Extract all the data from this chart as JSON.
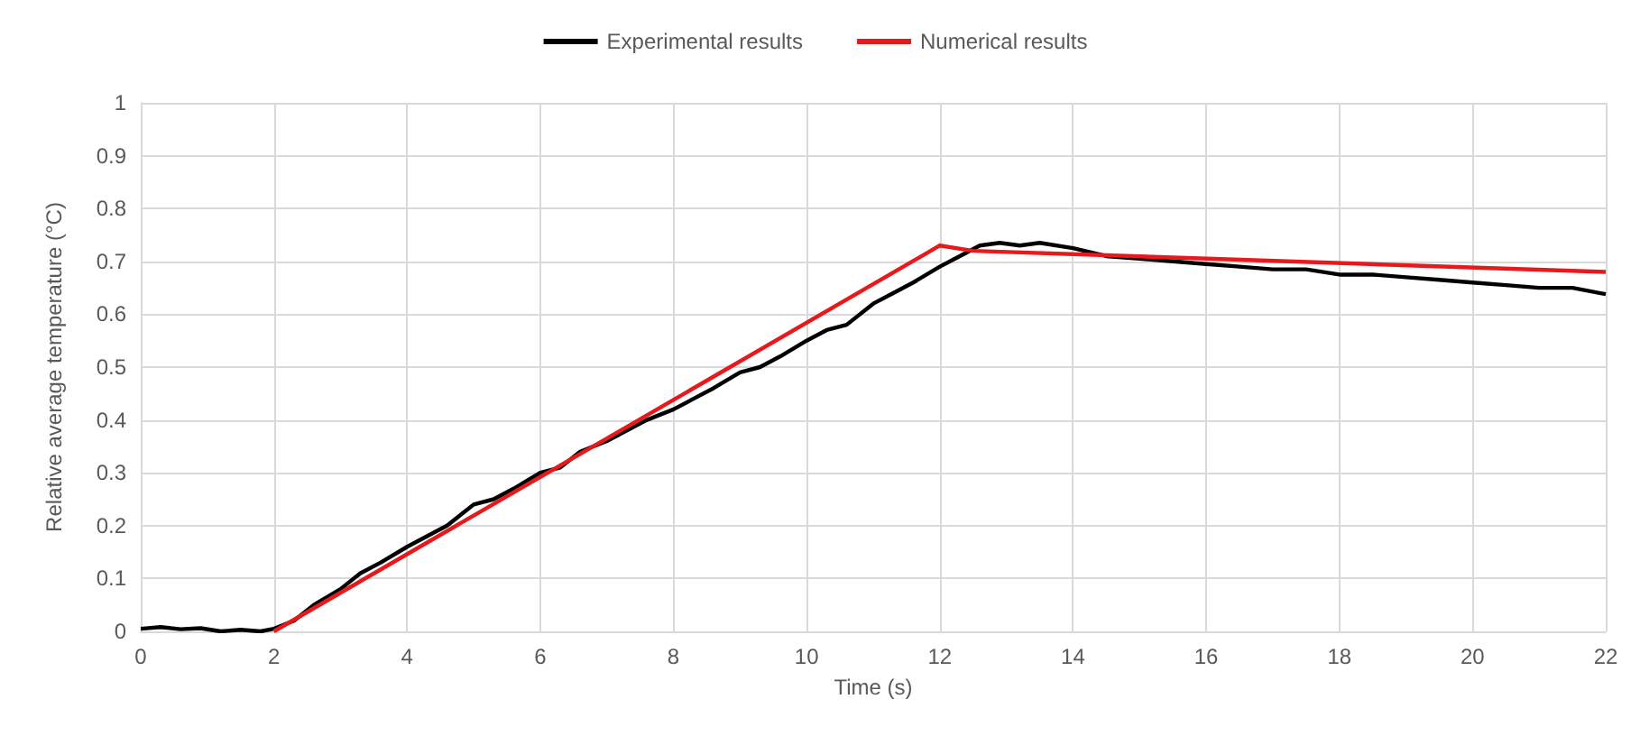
{
  "chart_data": {
    "type": "line",
    "xlabel": "Time (s)",
    "ylabel": "Relative average temperature (°C)",
    "xlim": [
      0,
      22
    ],
    "xticks": [
      0,
      2,
      4,
      6,
      8,
      10,
      12,
      14,
      16,
      18,
      20,
      22
    ],
    "ylim": [
      0,
      1
    ],
    "yticks": [
      0,
      0.1,
      0.2,
      0.3,
      0.4,
      0.5,
      0.6,
      0.7,
      0.8,
      0.9,
      1
    ],
    "grid": true,
    "legend": "top",
    "marker": "none",
    "line_style": "solid",
    "series": [
      {
        "name": "Experimental results",
        "color": "#000000",
        "x": [
          0,
          0.3,
          0.6,
          0.9,
          1.2,
          1.5,
          1.8,
          2,
          2.3,
          2.6,
          3,
          3.3,
          3.6,
          4,
          4.3,
          4.6,
          5,
          5.3,
          5.6,
          6,
          6.3,
          6.6,
          7,
          7.3,
          7.6,
          8,
          8.3,
          8.6,
          9,
          9.3,
          9.6,
          10,
          10.3,
          10.6,
          11,
          11.3,
          11.6,
          12,
          12.3,
          12.6,
          12.9,
          13.2,
          13.5,
          14,
          14.5,
          15,
          15.5,
          16,
          16.5,
          17,
          17.5,
          18,
          18.5,
          19,
          19.5,
          20,
          20.5,
          21,
          21.5,
          22
        ],
        "values": [
          0.005,
          0.008,
          0.004,
          0.006,
          0,
          0.003,
          0,
          0.005,
          0.02,
          0.05,
          0.08,
          0.11,
          0.13,
          0.16,
          0.18,
          0.2,
          0.24,
          0.25,
          0.27,
          0.3,
          0.31,
          0.34,
          0.36,
          0.38,
          0.4,
          0.42,
          0.44,
          0.46,
          0.49,
          0.5,
          0.52,
          0.55,
          0.57,
          0.58,
          0.62,
          0.64,
          0.66,
          0.69,
          0.71,
          0.73,
          0.735,
          0.73,
          0.735,
          0.725,
          0.71,
          0.705,
          0.7,
          0.695,
          0.69,
          0.685,
          0.685,
          0.675,
          0.675,
          0.67,
          0.665,
          0.66,
          0.655,
          0.65,
          0.65,
          0.638
        ]
      },
      {
        "name": "Numerical results",
        "color": "#e8191d",
        "x": [
          2,
          12,
          12.5,
          22
        ],
        "values": [
          0,
          0.73,
          0.72,
          0.68
        ]
      }
    ]
  }
}
